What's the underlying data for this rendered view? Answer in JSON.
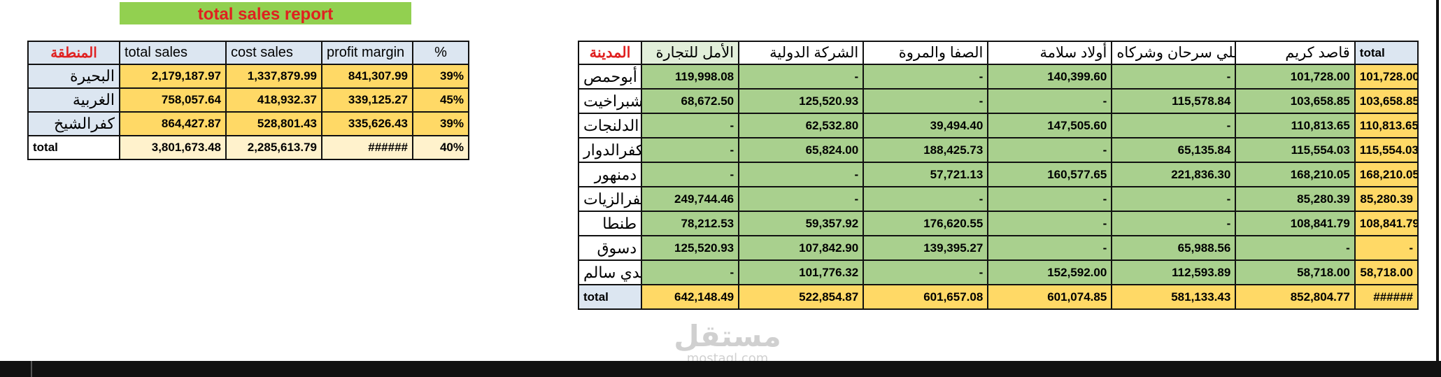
{
  "report_title": "total sales report",
  "region_table": {
    "headers": [
      "المنطقة",
      "total sales",
      "cost sales",
      "profit margin",
      "%"
    ],
    "rows": [
      {
        "name": "البحيرة",
        "total_sales": "2,179,187.97",
        "cost_sales": "1,337,879.99",
        "profit_margin": "841,307.99",
        "pct": "39%"
      },
      {
        "name": "الغربية",
        "total_sales": "758,057.64",
        "cost_sales": "418,932.37",
        "profit_margin": "339,125.27",
        "pct": "45%"
      },
      {
        "name": "كفرالشيخ",
        "total_sales": "864,427.87",
        "cost_sales": "528,801.43",
        "profit_margin": "335,626.43",
        "pct": "39%"
      },
      {
        "name": "total",
        "total_sales": "3,801,673.48",
        "cost_sales": "2,285,613.79",
        "profit_margin": "######",
        "pct": "40%"
      }
    ]
  },
  "city_table": {
    "headers": [
      "total",
      "قاصد كريم",
      "علي سرحان وشركاه",
      "أولاد سلامة",
      "الصفا والمروة",
      "الشركة الدولية",
      "الأمل للتجارة",
      "المدينة"
    ],
    "rows": [
      {
        "city": "أبوحمص",
        "values": [
          "101,728.00",
          "101,728.00",
          "-",
          "140,399.60",
          "-",
          "-",
          "119,998.08"
        ]
      },
      {
        "city": "شبراخيت",
        "values": [
          "103,658.85",
          "103,658.85",
          "115,578.84",
          "-",
          "-",
          "125,520.93",
          "68,672.50"
        ]
      },
      {
        "city": "الدلنجات",
        "values": [
          "110,813.65",
          "110,813.65",
          "-",
          "147,505.60",
          "39,494.40",
          "62,532.80",
          "-"
        ]
      },
      {
        "city": "كفرالدوار",
        "values": [
          "115,554.03",
          "115,554.03",
          "65,135.84",
          "-",
          "188,425.73",
          "65,824.00",
          "-"
        ]
      },
      {
        "city": "دمنهور",
        "values": [
          "168,210.05",
          "168,210.05",
          "221,836.30",
          "160,577.65",
          "57,721.13",
          "-",
          "-"
        ]
      },
      {
        "city": "كفرالزيات",
        "values": [
          "85,280.39",
          "85,280.39",
          "-",
          "-",
          "-",
          "-",
          "249,744.46"
        ]
      },
      {
        "city": "طنطا",
        "values": [
          "108,841.79",
          "108,841.79",
          "-",
          "-",
          "176,620.55",
          "59,357.92",
          "78,212.53"
        ]
      },
      {
        "city": "دسوق",
        "values": [
          "-",
          "-",
          "65,988.56",
          "-",
          "139,395.27",
          "107,842.90",
          "125,520.93"
        ]
      },
      {
        "city": "سيدي سالم",
        "values": [
          "58,718.00",
          "58,718.00",
          "112,593.89",
          "152,592.00",
          "-",
          "101,776.32",
          "-"
        ]
      },
      {
        "city": "total",
        "values": [
          "######",
          "852,804.77",
          "581,133.43",
          "601,074.85",
          "601,657.08",
          "522,854.87",
          "642,148.49"
        ]
      }
    ]
  },
  "watermark": {
    "arabic": "مستقل",
    "latin": "mostaql.com"
  }
}
